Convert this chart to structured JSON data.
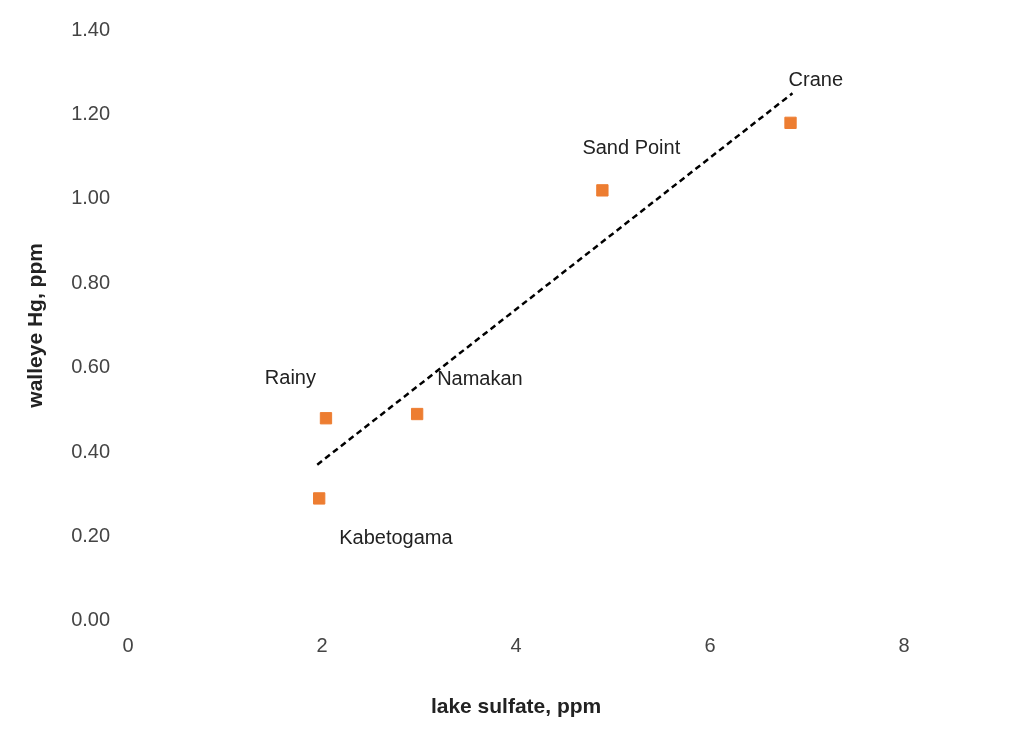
{
  "chart_data": {
    "type": "scatter",
    "xlabel": "lake sulfate, ppm",
    "ylabel": "walleye Hg, ppm",
    "xlim": [
      0,
      8
    ],
    "xticks": [
      0,
      2,
      4,
      6,
      8
    ],
    "ylim": [
      0,
      1.4
    ],
    "yticks": [
      {
        "value": 0,
        "label": "0.00"
      },
      {
        "value": 0.2,
        "label": "0.20"
      },
      {
        "value": 0.4,
        "label": "0.40"
      },
      {
        "value": 0.6,
        "label": "0.60"
      },
      {
        "value": 0.8,
        "label": "0.80"
      },
      {
        "value": 1.0,
        "label": "1.00"
      },
      {
        "value": 1.2,
        "label": "1.20"
      },
      {
        "value": 1.4,
        "label": "1.40"
      }
    ],
    "grid": false,
    "legend": false,
    "marker": "square",
    "series": [
      {
        "type": "scatter",
        "color": "#ed7d31",
        "x": [
          1.97,
          2.04,
          2.98,
          4.89,
          6.83
        ],
        "values": [
          0.29,
          0.48,
          0.49,
          1.02,
          1.18
        ]
      },
      {
        "type": "line",
        "color": "#000000",
        "line_style": "dashed",
        "marker": "none",
        "x": [
          1.95,
          6.85
        ],
        "values": [
          0.37,
          1.25
        ]
      }
    ],
    "annotations": [
      {
        "text": "Kabetogama",
        "x": 1.97,
        "y": 0.29
      },
      {
        "text": "Rainy",
        "x": 2.04,
        "y": 0.48
      },
      {
        "text": "Namakan",
        "x": 2.98,
        "y": 0.49
      },
      {
        "text": "Sand Point",
        "x": 4.89,
        "y": 1.02
      },
      {
        "text": "Crane",
        "x": 6.83,
        "y": 1.18
      }
    ]
  }
}
